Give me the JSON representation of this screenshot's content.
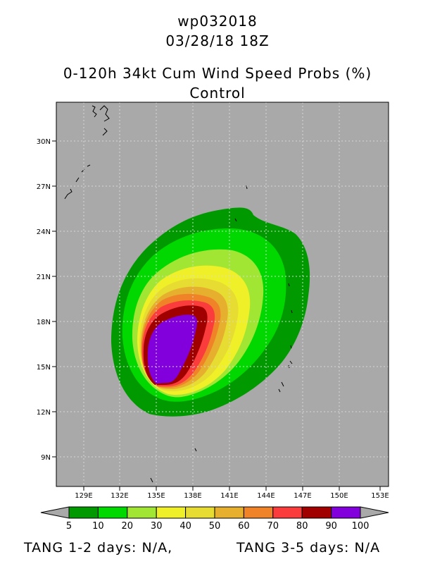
{
  "header": {
    "storm_id": "wp032018",
    "datetime": "03/28/18 18Z",
    "product": "0-120h 34kt Cum Wind Speed Probs (%)",
    "model": "Control"
  },
  "map": {
    "lat_labels": [
      "30N",
      "27N",
      "24N",
      "21N",
      "18N",
      "15N",
      "12N",
      "9N"
    ],
    "lon_labels": [
      "129E",
      "132E",
      "135E",
      "138E",
      "141E",
      "144E",
      "147E",
      "150E",
      "153E"
    ],
    "land_color": "#a9a9a9"
  },
  "colorbar": {
    "colors": [
      "#009a00",
      "#00d800",
      "#a0e632",
      "#f0f028",
      "#e6dc32",
      "#e6af2d",
      "#f08228",
      "#fa3c3c",
      "#a00000",
      "#8200dc"
    ],
    "labels": [
      "5",
      "10",
      "20",
      "30",
      "40",
      "50",
      "60",
      "70",
      "80",
      "90",
      "100"
    ]
  },
  "footer": {
    "tang_12": "TANG 1-2 days:  N/A,",
    "tang_35": "TANG 3-5 days:  N/A"
  }
}
